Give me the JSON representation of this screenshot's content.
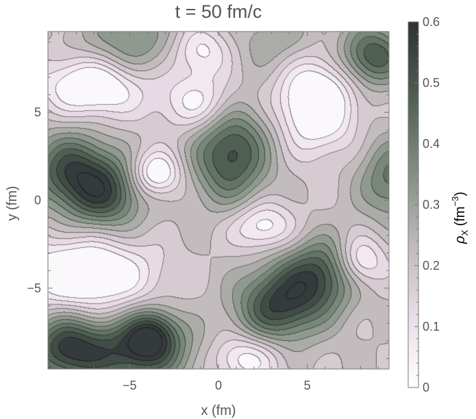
{
  "chart_data": {
    "type": "heatmap",
    "subtype": "filled-contour",
    "title": "t = 50 fm/c",
    "xlabel": "x (fm)",
    "ylabel": "y (fm)",
    "xlim": [
      -9.6,
      9.6
    ],
    "ylim": [
      -9.6,
      9.6
    ],
    "x_ticks": [
      -5,
      0,
      5
    ],
    "y_ticks": [
      -5,
      0,
      5
    ],
    "x_tick_labels": [
      "−5",
      "0",
      "5"
    ],
    "y_tick_labels": [
      "−5",
      "0",
      "5"
    ],
    "colorbar": {
      "label_main": "ρ",
      "label_sub": "X",
      "label_unit_open": " (fm",
      "label_unit_sup": "−3",
      "label_unit_close": ")",
      "range": [
        0,
        0.6
      ],
      "ticks": [
        0,
        0.1,
        0.2,
        0.3,
        0.4,
        0.5,
        0.6
      ],
      "tick_labels": [
        "0",
        "0.1",
        "0.2",
        "0.3",
        "0.4",
        "0.5",
        "0.6"
      ],
      "colors": [
        "#ffffff",
        "#e9dbe6",
        "#bdb7b8",
        "#7e8d80",
        "#4e5d51",
        "#2f3136"
      ]
    },
    "contour_levels": [
      0.05,
      0.1,
      0.15,
      0.2,
      0.25,
      0.3,
      0.35,
      0.4,
      0.45,
      0.5,
      0.55
    ],
    "density_peaks": [
      {
        "x": 0.7,
        "y": 2.7,
        "value": 0.53,
        "sx": 1.5,
        "sy": 2.0
      },
      {
        "x": -8.3,
        "y": 1.7,
        "value": 0.5,
        "sx": 1.6,
        "sy": 1.5
      },
      {
        "x": -6.3,
        "y": 0.3,
        "value": 0.48,
        "sx": 1.5,
        "sy": 1.4
      },
      {
        "x": 3.3,
        "y": -6.0,
        "value": 0.53,
        "sx": 1.6,
        "sy": 1.5
      },
      {
        "x": 5.7,
        "y": -4.3,
        "value": 0.5,
        "sx": 1.5,
        "sy": 1.5
      },
      {
        "x": -5.3,
        "y": -8.7,
        "value": 0.52,
        "sx": 2.6,
        "sy": 1.3
      },
      {
        "x": -8.7,
        "y": -8.3,
        "value": 0.45,
        "sx": 1.3,
        "sy": 1.3
      },
      {
        "x": -3.8,
        "y": -7.6,
        "value": 0.48,
        "sx": 1.0,
        "sy": 1.0
      },
      {
        "x": 8.7,
        "y": 8.2,
        "value": 0.5,
        "sx": 1.3,
        "sy": 1.2
      },
      {
        "x": 9.8,
        "y": 1.2,
        "value": 0.42,
        "sx": 1.3,
        "sy": 1.6
      },
      {
        "x": -5.0,
        "y": 8.8,
        "value": 0.36,
        "sx": 2.0,
        "sy": 1.4
      },
      {
        "x": 3.3,
        "y": 9.0,
        "value": 0.3,
        "sx": 1.6,
        "sy": 1.2
      }
    ],
    "density_lows": [
      {
        "x": -7.0,
        "y": 6.5,
        "value": -0.28,
        "sx": 2.0,
        "sy": 1.2
      },
      {
        "x": -1.0,
        "y": 5.5,
        "value": -0.2,
        "sx": 1.5,
        "sy": 1.2
      },
      {
        "x": -1.0,
        "y": 8.5,
        "value": -0.18,
        "sx": 1.2,
        "sy": 1.0
      },
      {
        "x": 5.5,
        "y": 5.5,
        "value": -0.3,
        "sx": 1.5,
        "sy": 1.8
      },
      {
        "x": -3.5,
        "y": 1.5,
        "value": -0.25,
        "sx": 1.0,
        "sy": 0.9
      },
      {
        "x": 2.5,
        "y": -1.5,
        "value": -0.2,
        "sx": 1.3,
        "sy": 1.0
      },
      {
        "x": -7.5,
        "y": -4.2,
        "value": -0.3,
        "sx": 2.5,
        "sy": 1.4
      },
      {
        "x": 8.0,
        "y": -3.5,
        "value": -0.2,
        "sx": 1.0,
        "sy": 1.0
      },
      {
        "x": 1.5,
        "y": -9.0,
        "value": -0.2,
        "sx": 1.4,
        "sy": 1.0
      }
    ],
    "background_value": 0.2
  }
}
